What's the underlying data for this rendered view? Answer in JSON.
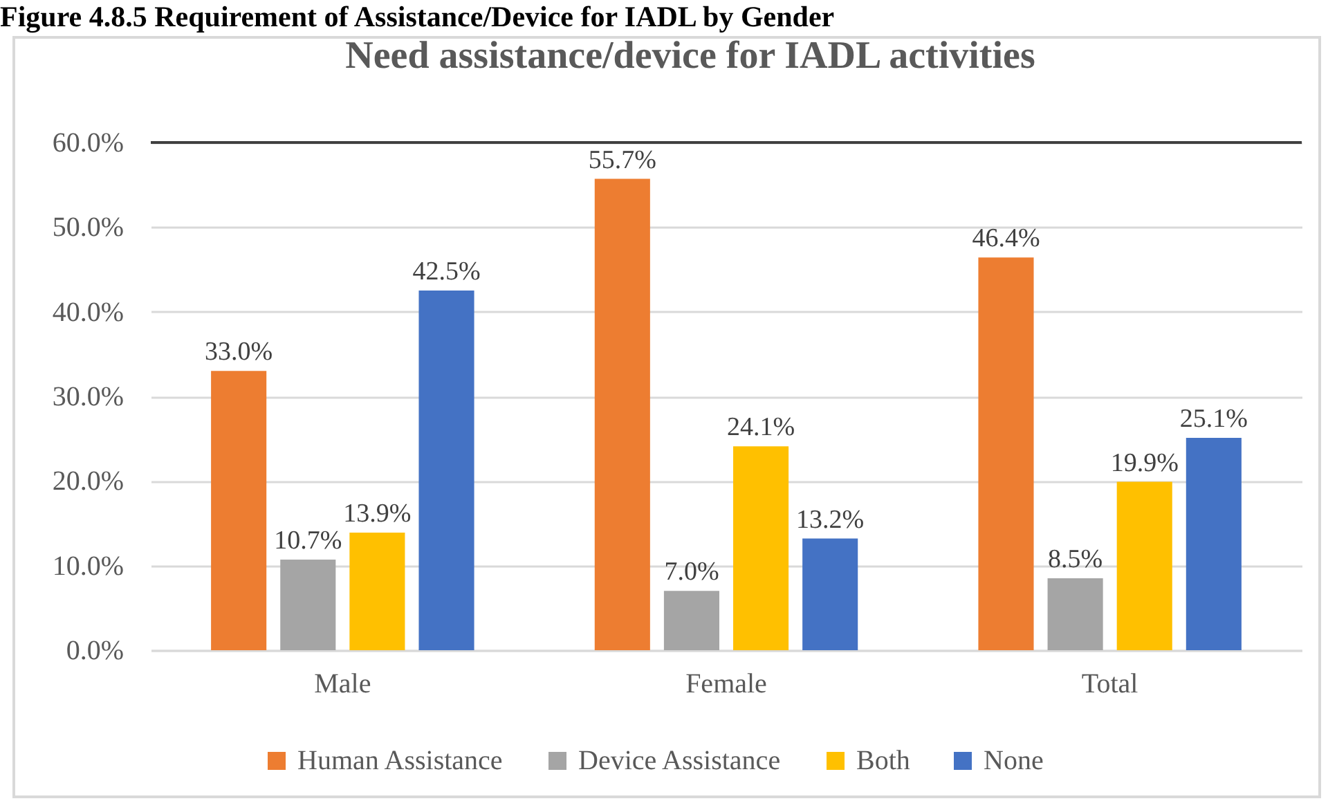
{
  "chart_data": {
    "type": "bar",
    "title": "Need assistance/device for IADL activities",
    "annotations": [
      "Figure 4.8.5 Requirement of Assistance/Device for IADL by Gender"
    ],
    "categories": [
      "Male",
      "Female",
      "Total"
    ],
    "series": [
      {
        "name": "Human Assistance",
        "color": "#ed7d31",
        "values": [
          33.0,
          55.7,
          46.4
        ],
        "value_labels": [
          "33.0%",
          "55.7%",
          "46.4%"
        ]
      },
      {
        "name": "Device Assistance",
        "color": "#a5a5a5",
        "values": [
          10.7,
          7.0,
          8.5
        ],
        "value_labels": [
          "10.7%",
          "7.0%",
          "8.5%"
        ]
      },
      {
        "name": "Both",
        "color": "#ffc000",
        "values": [
          13.9,
          24.1,
          19.9
        ],
        "value_labels": [
          "13.9%",
          "24.1%",
          "19.9%"
        ]
      },
      {
        "name": "None",
        "color": "#4472c4",
        "values": [
          42.5,
          13.2,
          25.1
        ],
        "value_labels": [
          "42.5%",
          "13.2%",
          "25.1%"
        ]
      }
    ],
    "ylim": [
      0,
      60
    ],
    "yticks": [
      {
        "value": 0,
        "label": "0.0%"
      },
      {
        "value": 10,
        "label": "10.0%"
      },
      {
        "value": 20,
        "label": "20.0%"
      },
      {
        "value": 30,
        "label": "30.0%"
      },
      {
        "value": 40,
        "label": "40.0%"
      },
      {
        "value": 50,
        "label": "50.0%"
      },
      {
        "value": 60,
        "label": "60.0%"
      }
    ],
    "ref_lines": [
      {
        "axis": "y",
        "value": 60,
        "color": "#404040"
      }
    ],
    "grid": "y",
    "legend": "bottom"
  }
}
